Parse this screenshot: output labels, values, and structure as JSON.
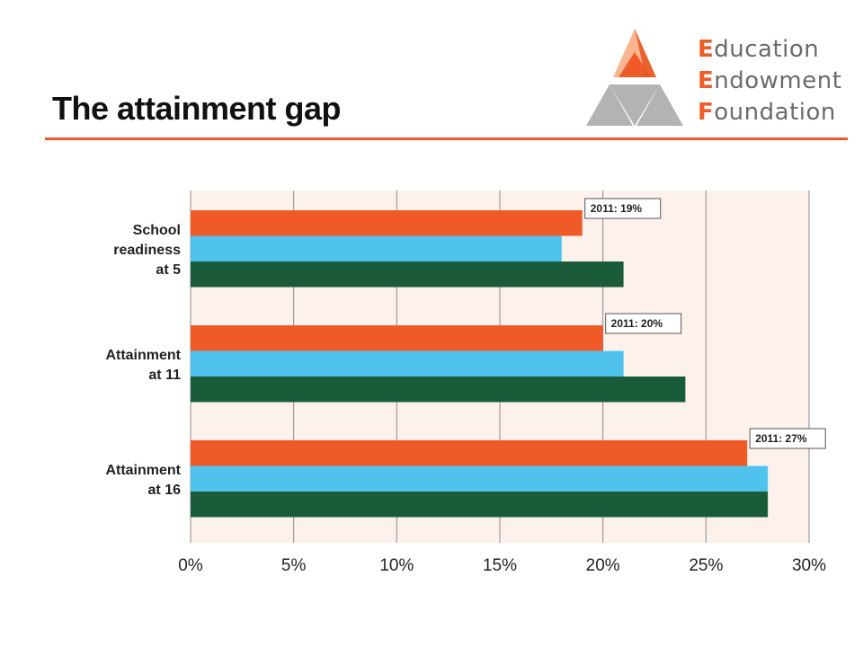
{
  "slide": {
    "title": "The attainment gap"
  },
  "logo": {
    "words": [
      "Education",
      "Endowment",
      "Foundation"
    ],
    "accent_color": "#f05a28",
    "text_color": "#6b6b6b",
    "shape_colors": [
      "#f9b58f",
      "#f05a28",
      "#b3b3b3"
    ]
  },
  "chart_data": {
    "type": "bar",
    "orientation": "horizontal",
    "categories": [
      "School readiness at 5",
      "Attainment at 11",
      "Attainment at 16"
    ],
    "category_label_lines": [
      [
        "School",
        "readiness",
        "at 5"
      ],
      [
        "Attainment",
        "at 11"
      ],
      [
        "Attainment",
        "at 16"
      ]
    ],
    "series": [
      {
        "values": [
          19,
          20,
          27
        ],
        "color": "#f05a28"
      },
      {
        "values": [
          18,
          21,
          28
        ],
        "color": "#4fc3ee"
      },
      {
        "values": [
          21,
          24,
          28
        ],
        "color": "#1a5c3a"
      }
    ],
    "data_labels": [
      "2011: 19%",
      "2011: 20%",
      "2011: 27%"
    ],
    "x_ticks": [
      "0%",
      "5%",
      "10%",
      "15%",
      "20%",
      "25%",
      "30%"
    ],
    "xlim": [
      0,
      30
    ],
    "grid": true,
    "plot_background": "#fdf1ec",
    "title": "",
    "xlabel": "",
    "ylabel": ""
  }
}
